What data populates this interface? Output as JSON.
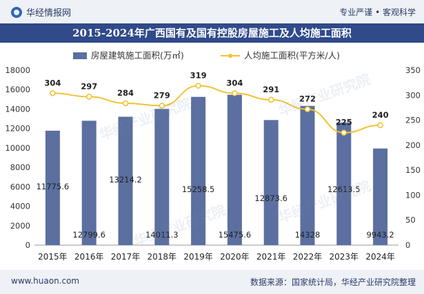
{
  "brand": {
    "name": "华经情报网",
    "slogan": "专业严谨 • 客观科学"
  },
  "footer": {
    "url": "www.huaon.com",
    "source": "数据来源：国家统计局，华经产业研究院整理"
  },
  "watermark": "华经产业研究院",
  "colors": {
    "bar": "#5b6fa0",
    "line": "#f1c232",
    "header": "#304a8a"
  },
  "chart_data": {
    "type": "bar",
    "title": "2015-2024年广西国有及国有控股房屋施工及人均施工面积",
    "categories": [
      "2015年",
      "2016年",
      "2017年",
      "2018年",
      "2019年",
      "2020年",
      "2021年",
      "2022年",
      "2023年",
      "2024年"
    ],
    "series": [
      {
        "name": "房屋建筑施工面积(万㎡)",
        "type": "bar",
        "axis": "left",
        "values": [
          11775.6,
          12799.6,
          13214.2,
          14011.3,
          15258.5,
          15475.6,
          12873.6,
          14328,
          12613.5,
          9943.2
        ],
        "labels": [
          "11775.6",
          "12799.6",
          "13214.2",
          "14011.3",
          "15258.5",
          "15475.6",
          "12873.6",
          "14328",
          "12613.5",
          "9943.2"
        ]
      },
      {
        "name": "人均施工面积(平方米/人)",
        "type": "line",
        "axis": "right",
        "values": [
          304,
          297,
          284,
          279,
          319,
          304,
          291,
          272,
          225,
          240
        ],
        "labels": [
          "304",
          "297",
          "284",
          "279",
          "319",
          "304",
          "291",
          "272",
          "225",
          "240"
        ]
      }
    ],
    "y_left": {
      "min": 0,
      "max": 18000,
      "ticks": [
        "0",
        "2000",
        "4000",
        "6000",
        "8000",
        "10000",
        "12000",
        "14000",
        "16000",
        "18000"
      ]
    },
    "y_right": {
      "min": 0,
      "max": 350,
      "ticks": [
        "0",
        "50",
        "100",
        "150",
        "200",
        "250",
        "300",
        "350"
      ]
    }
  }
}
